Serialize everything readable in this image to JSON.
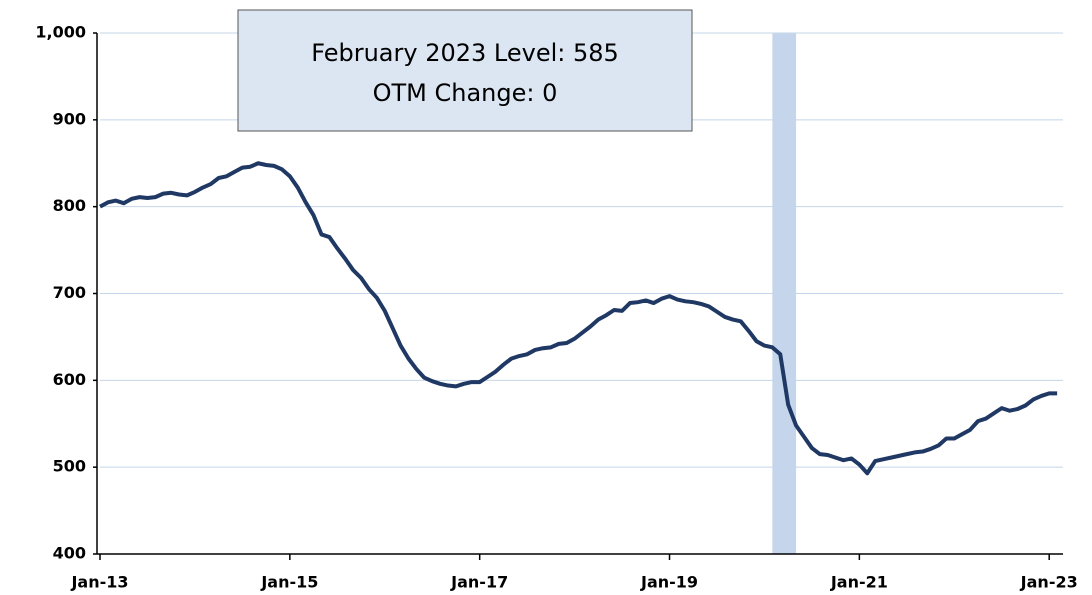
{
  "chart_data": {
    "type": "line",
    "annotations": [
      "February 2023 Level: 585",
      "OTM Change: 0"
    ],
    "categories": [
      "Jan-13",
      null,
      null,
      null,
      null,
      null,
      null,
      null,
      null,
      null,
      null,
      null,
      null,
      null,
      null,
      null,
      null,
      null,
      null,
      null,
      null,
      null,
      null,
      null,
      "Jan-15",
      null,
      null,
      null,
      null,
      null,
      null,
      null,
      null,
      null,
      null,
      null,
      null,
      null,
      null,
      null,
      null,
      null,
      null,
      null,
      null,
      null,
      null,
      null,
      "Jan-17",
      null,
      null,
      null,
      null,
      null,
      null,
      null,
      null,
      null,
      null,
      null,
      null,
      null,
      null,
      null,
      null,
      null,
      null,
      null,
      null,
      null,
      null,
      null,
      "Jan-19",
      null,
      null,
      null,
      null,
      null,
      null,
      null,
      null,
      null,
      null,
      null,
      null,
      null,
      null,
      null,
      null,
      null,
      null,
      null,
      null,
      null,
      null,
      null,
      "Jan-21",
      null,
      null,
      null,
      null,
      null,
      null,
      null,
      null,
      null,
      null,
      null,
      null,
      null,
      null,
      null,
      null,
      null,
      null,
      null,
      null,
      null,
      null,
      null,
      "Jan-23",
      null
    ],
    "values": [
      800,
      805,
      807,
      804,
      809,
      811,
      810,
      811,
      815,
      816,
      814,
      813,
      817,
      822,
      826,
      833,
      835,
      840,
      845,
      846,
      850,
      848,
      847,
      843,
      835,
      822,
      805,
      790,
      768,
      765,
      752,
      740,
      727,
      718,
      705,
      695,
      680,
      660,
      640,
      625,
      613,
      603,
      599,
      596,
      594,
      593,
      596,
      598,
      598,
      604,
      610,
      618,
      625,
      628,
      630,
      635,
      637,
      638,
      642,
      643,
      648,
      655,
      662,
      670,
      675,
      681,
      680,
      689,
      690,
      692,
      689,
      694,
      697,
      693,
      691,
      690,
      688,
      685,
      679,
      673,
      670,
      668,
      657,
      645,
      640,
      638,
      630,
      572,
      548,
      535,
      522,
      515,
      514,
      511,
      508,
      510,
      503,
      493,
      507,
      509,
      511,
      513,
      515,
      517,
      518,
      521,
      525,
      533,
      533,
      538,
      543,
      553,
      556,
      562,
      568,
      565,
      567,
      571,
      578,
      582,
      585,
      585
    ],
    "color": "#1f3864",
    "shade": {
      "from": 85,
      "to": 88,
      "color": "#c5d5ec"
    },
    "ylim": [
      400,
      1000
    ],
    "yticks": [
      400,
      500,
      600,
      700,
      800,
      900,
      {
        "value": 1000,
        "label": "1,000"
      }
    ],
    "grid": true
  }
}
